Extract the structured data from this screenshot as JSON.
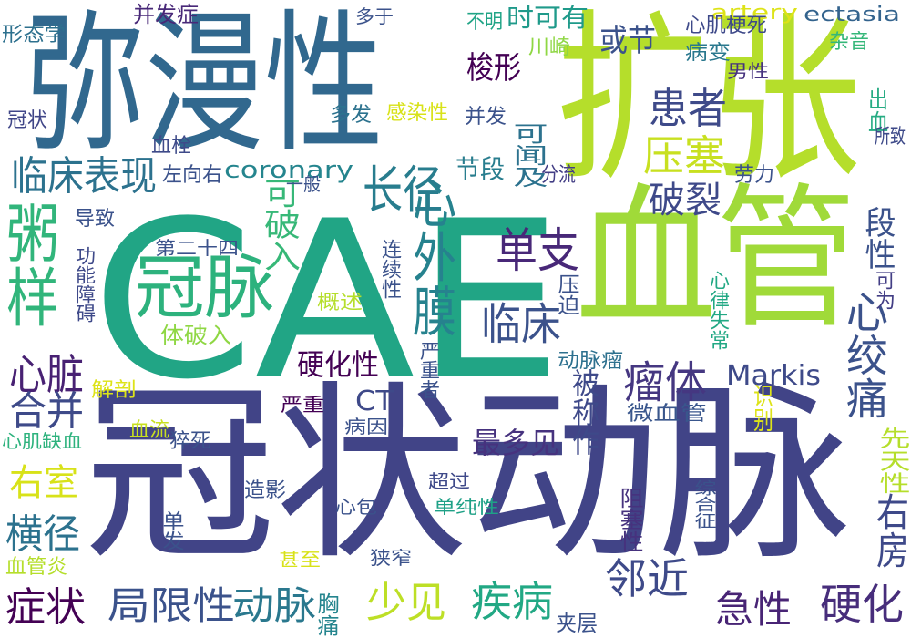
{
  "words": [
    {
      "text": "CAE",
      "color": "#21a585"
    },
    {
      "text": "冠状动脉",
      "color": "#414487"
    },
    {
      "text": "扩张",
      "color": "#b5de2b"
    },
    {
      "text": "弥漫性",
      "color": "#31688e"
    },
    {
      "text": "血管",
      "color": "#a0da39"
    },
    {
      "text": "冠脉",
      "color": "#2db27d"
    },
    {
      "text": "粥样",
      "color": "#31b57b"
    },
    {
      "text": "心外膜",
      "color": "#26828e"
    },
    {
      "text": "临床表现",
      "color": "#2c728e"
    },
    {
      "text": "患者",
      "color": "#3e4a89"
    },
    {
      "text": "压塞",
      "color": "#c8e020"
    },
    {
      "text": "长径",
      "color": "#287d8e"
    },
    {
      "text": "破裂",
      "color": "#3e4989"
    },
    {
      "text": "单支",
      "color": "#482878"
    },
    {
      "text": "临床",
      "color": "#3b528b"
    },
    {
      "text": "瘤体",
      "color": "#453781"
    },
    {
      "text": "心绞痛",
      "color": "#3b528b"
    },
    {
      "text": "心脏",
      "color": "#482173"
    },
    {
      "text": "合并",
      "color": "#3e4a89"
    },
    {
      "text": "右室",
      "color": "#d8e219"
    },
    {
      "text": "横径",
      "color": "#2c728e"
    },
    {
      "text": "症状",
      "color": "#440154"
    },
    {
      "text": "局限性",
      "color": "#3b528b"
    },
    {
      "text": "动脉",
      "color": "#2a788e"
    },
    {
      "text": "少见",
      "color": "#bddf26"
    },
    {
      "text": "疾病",
      "color": "#22a884"
    },
    {
      "text": "邻近",
      "color": "#3e4a89"
    },
    {
      "text": "急性",
      "color": "#482475"
    },
    {
      "text": "硬化",
      "color": "#472d7b"
    },
    {
      "text": "右房",
      "color": "#3e4989"
    },
    {
      "text": "Markis",
      "color": "#3e4a89"
    },
    {
      "text": "CT",
      "color": "#3e4989"
    },
    {
      "text": "最多见",
      "color": "#46327e"
    },
    {
      "text": "硬化性",
      "color": "#440154"
    },
    {
      "text": "coronary",
      "color": "#25858e"
    },
    {
      "text": "artery",
      "color": "#dde318"
    },
    {
      "text": "ectasia",
      "color": "#33638d"
    },
    {
      "text": "梭形",
      "color": "#440154"
    },
    {
      "text": "或节",
      "color": "#3b528b"
    },
    {
      "text": "时可有",
      "color": "#1f9a8a"
    },
    {
      "text": "节段",
      "color": "#287d8e"
    },
    {
      "text": "可闻及",
      "color": "#2c728e"
    },
    {
      "text": "段性",
      "color": "#3b528b"
    },
    {
      "text": "可破入",
      "color": "#37b878"
    },
    {
      "text": "体破入",
      "color": "#8fd744"
    },
    {
      "text": "并发症",
      "color": "#482878"
    },
    {
      "text": "多于",
      "color": "#3b528b"
    },
    {
      "text": "不明",
      "color": "#20a486"
    },
    {
      "text": "心肌梗死",
      "color": "#3e4989"
    },
    {
      "text": "病变",
      "color": "#2a788e"
    },
    {
      "text": "杂音",
      "color": "#35b779"
    },
    {
      "text": "川崎",
      "color": "#8fd744"
    },
    {
      "text": "形态学",
      "color": "#2d708e"
    },
    {
      "text": "男性",
      "color": "#46327e"
    },
    {
      "text": "出血",
      "color": "#25ab82"
    },
    {
      "text": "冠状",
      "color": "#404688"
    },
    {
      "text": "多发",
      "color": "#2c728e"
    },
    {
      "text": "感染性",
      "color": "#d8e219"
    },
    {
      "text": "并发",
      "color": "#3b528b"
    },
    {
      "text": "所致",
      "color": "#3e4a89"
    },
    {
      "text": "血栓",
      "color": "#3e4a89"
    },
    {
      "text": "左向右",
      "color": "#3b528b"
    },
    {
      "text": "劳力",
      "color": "#3b528b"
    },
    {
      "text": "分流",
      "color": "#433e85"
    },
    {
      "text": "一般",
      "color": "#3b528b"
    },
    {
      "text": "导致",
      "color": "#3b528b"
    },
    {
      "text": "第二十四",
      "color": "#3b528b"
    },
    {
      "text": "功能障碍",
      "color": "#3e4989"
    },
    {
      "text": "连续性",
      "color": "#3b528b"
    },
    {
      "text": "心律失常",
      "color": "#22a884"
    },
    {
      "text": "可为",
      "color": "#433e85"
    },
    {
      "text": "压迫",
      "color": "#3b528b"
    },
    {
      "text": "概述",
      "color": "#b5de2b"
    },
    {
      "text": "严重者",
      "color": "#3b528b"
    },
    {
      "text": "动脉瘤",
      "color": "#2d708e"
    },
    {
      "text": "解剖",
      "color": "#dde318"
    },
    {
      "text": "严重",
      "color": "#440154"
    },
    {
      "text": "被称作",
      "color": "#3e4989"
    },
    {
      "text": "微血管",
      "color": "#39568c"
    },
    {
      "text": "识别",
      "color": "#dde318"
    },
    {
      "text": "心肌缺血",
      "color": "#2db27d"
    },
    {
      "text": "血流",
      "color": "#c8e020"
    },
    {
      "text": "病因",
      "color": "#3b528b"
    },
    {
      "text": "猝死",
      "color": "#3b528b"
    },
    {
      "text": "先天性",
      "color": "#b5de2b"
    },
    {
      "text": "超过",
      "color": "#3e4989"
    },
    {
      "text": "造影",
      "color": "#3b528b"
    },
    {
      "text": "单纯性",
      "color": "#1fa187"
    },
    {
      "text": "综合征",
      "color": "#3b528b"
    },
    {
      "text": "心包",
      "color": "#3b528b"
    },
    {
      "text": "阻塞性",
      "color": "#46327e"
    },
    {
      "text": "单发",
      "color": "#3b528b"
    },
    {
      "text": "甚至",
      "color": "#d8e219"
    },
    {
      "text": "狭窄",
      "color": "#3b528b"
    },
    {
      "text": "血管炎",
      "color": "#b5de2b"
    },
    {
      "text": "胸痛",
      "color": "#25858e"
    },
    {
      "text": "夹层",
      "color": "#3b528b"
    }
  ]
}
